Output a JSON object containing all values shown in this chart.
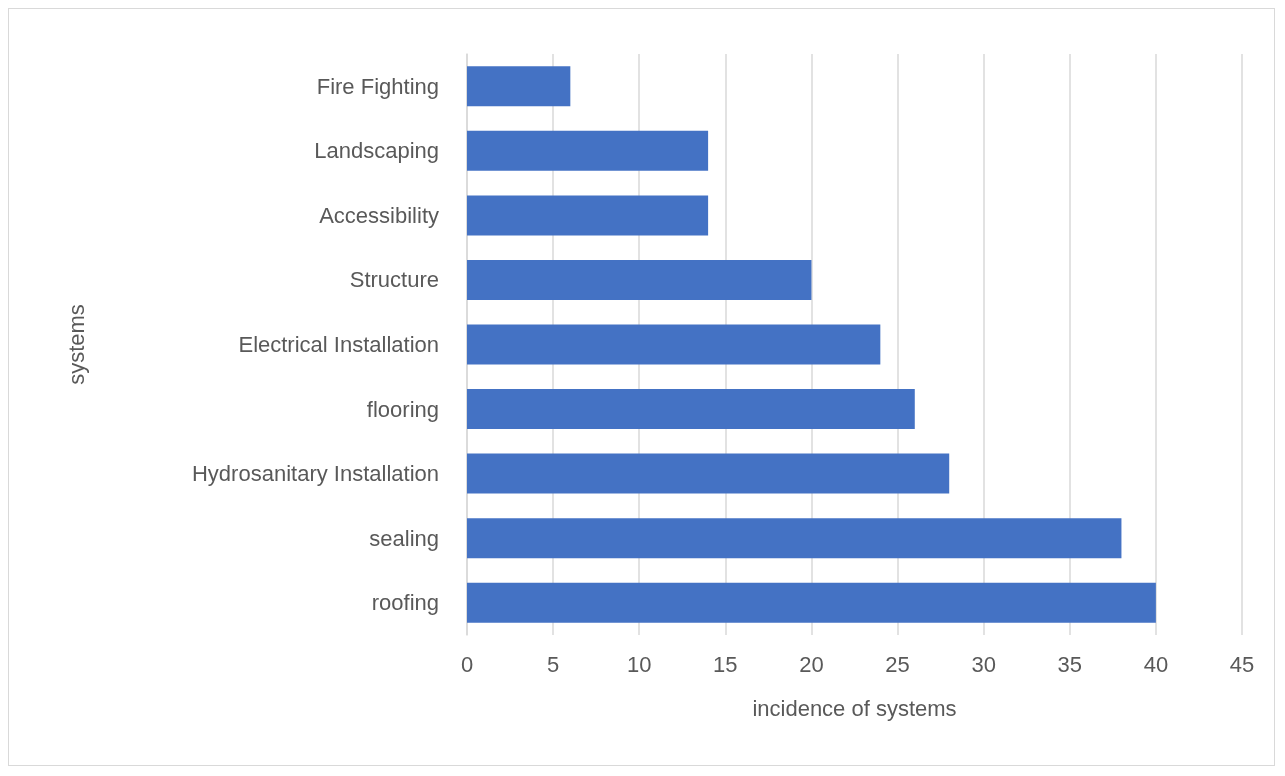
{
  "chart_data": {
    "type": "bar",
    "orientation": "horizontal",
    "xlabel": "incidence of systems",
    "ylabel": "systems",
    "categories": [
      "Fire Fighting",
      "Landscaping",
      "Accessibility",
      "Structure",
      "Electrical Installation",
      "flooring",
      "Hydrosanitary Installation",
      "sealing",
      "roofing"
    ],
    "values": [
      6,
      14,
      14,
      20,
      24,
      26,
      28,
      38,
      40
    ],
    "color": "#4472c4",
    "xlim": [
      0,
      45
    ],
    "xticks": [
      0,
      5,
      10,
      15,
      20,
      25,
      30,
      35,
      40,
      45
    ],
    "grid": "x"
  }
}
